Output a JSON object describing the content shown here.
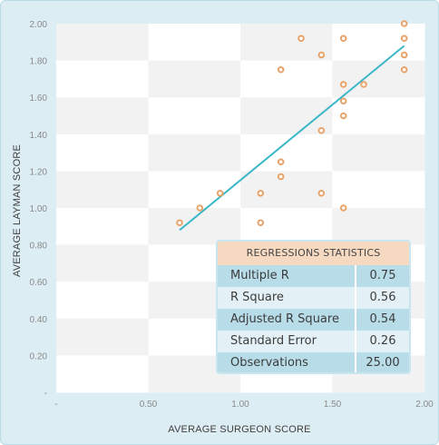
{
  "chart_data": {
    "type": "scatter",
    "xlabel": "AVERAGE SURGEON SCORE",
    "ylabel": "AVERAGE LAYMAN SCORE",
    "xlim": [
      0,
      2
    ],
    "ylim": [
      0,
      2
    ],
    "x_ticks": [
      "-",
      "0.50",
      "1.00",
      "1.50",
      "2.00"
    ],
    "y_ticks": [
      "-",
      "0.20",
      "0.40",
      "0.60",
      "0.80",
      "1.00",
      "1.20",
      "1.40",
      "1.60",
      "1.80",
      "2.00"
    ],
    "grid": "checkerboard",
    "points": [
      {
        "x": 0.67,
        "y": 0.92
      },
      {
        "x": 0.78,
        "y": 1.0
      },
      {
        "x": 0.89,
        "y": 1.08
      },
      {
        "x": 1.11,
        "y": 0.92
      },
      {
        "x": 1.11,
        "y": 1.08
      },
      {
        "x": 1.22,
        "y": 1.17
      },
      {
        "x": 1.22,
        "y": 1.25
      },
      {
        "x": 1.22,
        "y": 1.75
      },
      {
        "x": 1.33,
        "y": 1.92
      },
      {
        "x": 1.44,
        "y": 1.08
      },
      {
        "x": 1.44,
        "y": 1.42
      },
      {
        "x": 1.44,
        "y": 1.83
      },
      {
        "x": 1.56,
        "y": 1.0
      },
      {
        "x": 1.56,
        "y": 1.5
      },
      {
        "x": 1.56,
        "y": 1.58
      },
      {
        "x": 1.56,
        "y": 1.67
      },
      {
        "x": 1.56,
        "y": 1.92
      },
      {
        "x": 1.67,
        "y": 1.67
      },
      {
        "x": 1.89,
        "y": 1.75
      },
      {
        "x": 1.89,
        "y": 1.83
      },
      {
        "x": 1.89,
        "y": 1.92
      },
      {
        "x": 1.89,
        "y": 2.0
      }
    ],
    "trendline": [
      {
        "x": 0.67,
        "y": 0.88
      },
      {
        "x": 1.89,
        "y": 1.88
      }
    ],
    "point_color": "#e8a36a",
    "line_color": "#3bb7c8"
  },
  "stats_table": {
    "title": "REGRESSIONS STATISTICS",
    "rows": [
      {
        "label": "Multiple R",
        "value": "0.75"
      },
      {
        "label": "R Square",
        "value": "0.56"
      },
      {
        "label": "Adjusted R Square",
        "value": "0.54"
      },
      {
        "label": "Standard Error",
        "value": "0.26"
      },
      {
        "label": "Observations",
        "value": "25.00"
      }
    ]
  }
}
